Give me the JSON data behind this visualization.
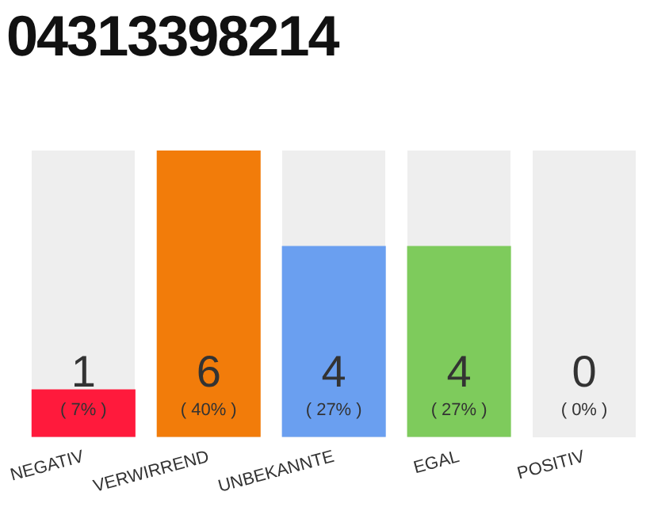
{
  "chart_data": {
    "type": "bar",
    "title": "04313398214",
    "relative": false,
    "categories": [
      "NEGATIV",
      "VERWIRREND",
      "UNBEKANNTE",
      "EGAL",
      "POSITIV"
    ],
    "values": [
      1,
      6,
      4,
      4,
      0
    ],
    "colors": [
      "#ff1a3c",
      "#f27c0a",
      "#6a9ff0",
      "#7ecb5c",
      "#eeeeee"
    ],
    "value_labels": [
      "1\n( 7% )",
      "6\n( 40% )",
      "4\n( 27% )",
      "4\n( 27% )",
      "0\n( 0% )"
    ],
    "grid": false,
    "legend": false
  }
}
